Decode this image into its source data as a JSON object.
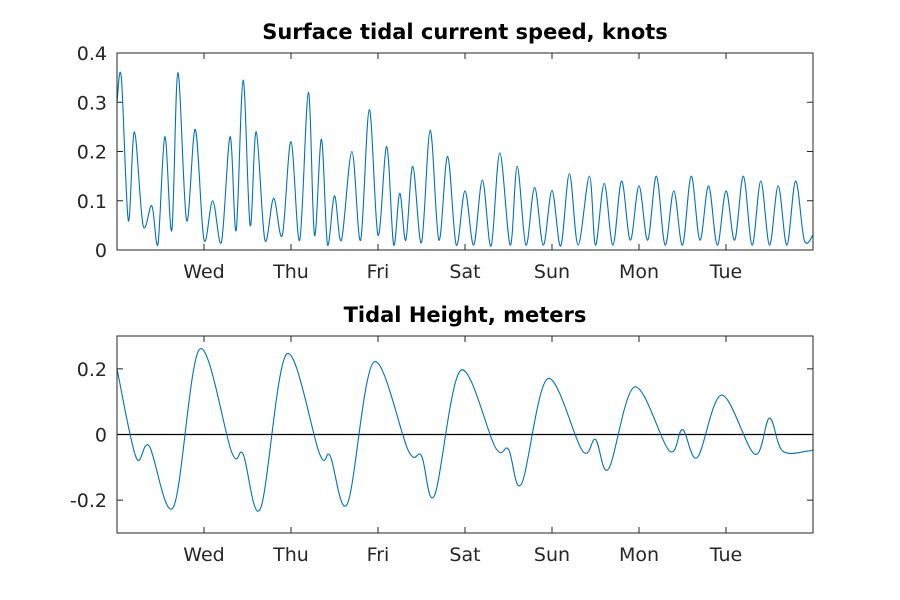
{
  "chart_data": [
    {
      "type": "line",
      "title": "Surface tidal current speed, knots",
      "xlabel": "",
      "ylabel": "",
      "xlim": [
        0,
        8
      ],
      "ylim": [
        0,
        0.4
      ],
      "x_ticks": [
        1,
        2,
        3,
        4,
        5,
        6,
        7
      ],
      "x_tick_labels": [
        "Wed",
        "Thu",
        "Fri",
        "Sat",
        "Sun",
        "Mon",
        "Tue"
      ],
      "y_ticks": [
        0,
        0.1,
        0.2,
        0.3,
        0.4
      ],
      "y_tick_labels": [
        "0",
        "0.1",
        "0.2",
        "0.3",
        "0.4"
      ],
      "grid": false,
      "series": [
        {
          "color": "#0072BD",
          "x": [
            0,
            0.05,
            0.13,
            0.2,
            0.3,
            0.4,
            0.47,
            0.55,
            0.63,
            0.7,
            0.8,
            0.9,
            1.0,
            1.1,
            1.2,
            1.3,
            1.37,
            1.45,
            1.53,
            1.6,
            1.7,
            1.8,
            1.9,
            2.0,
            2.1,
            2.2,
            2.27,
            2.35,
            2.42,
            2.5,
            2.58,
            2.7,
            2.8,
            2.9,
            3.0,
            3.1,
            3.18,
            3.25,
            3.32,
            3.4,
            3.5,
            3.6,
            3.7,
            3.8,
            3.9,
            4.0,
            4.1,
            4.2,
            4.3,
            4.4,
            4.52,
            4.6,
            4.7,
            4.8,
            4.9,
            5.0,
            5.1,
            5.2,
            5.3,
            5.43,
            5.5,
            5.6,
            5.7,
            5.8,
            5.9,
            6.0,
            6.1,
            6.2,
            6.3,
            6.4,
            6.5,
            6.6,
            6.7,
            6.8,
            6.9,
            7.0,
            7.1,
            7.2,
            7.3,
            7.4,
            7.5,
            7.6,
            7.7,
            7.8,
            7.9,
            8.0
          ],
          "y": [
            0.3,
            0.35,
            0.06,
            0.24,
            0.05,
            0.09,
            0.01,
            0.23,
            0.04,
            0.36,
            0.06,
            0.245,
            0.02,
            0.1,
            0.015,
            0.23,
            0.04,
            0.345,
            0.05,
            0.24,
            0.02,
            0.105,
            0.03,
            0.22,
            0.02,
            0.32,
            0.03,
            0.225,
            0.01,
            0.11,
            0.02,
            0.2,
            0.02,
            0.285,
            0.03,
            0.21,
            0.01,
            0.115,
            0.02,
            0.17,
            0.015,
            0.243,
            0.02,
            0.19,
            0.01,
            0.12,
            0.01,
            0.142,
            0.008,
            0.197,
            0.01,
            0.17,
            0.01,
            0.127,
            0.01,
            0.121,
            0.008,
            0.155,
            0.01,
            0.15,
            0.01,
            0.135,
            0.01,
            0.14,
            0.02,
            0.13,
            0.02,
            0.15,
            0.01,
            0.12,
            0.01,
            0.15,
            0.02,
            0.13,
            0.01,
            0.12,
            0.02,
            0.15,
            0.01,
            0.14,
            0.01,
            0.13,
            0.01,
            0.14,
            0.02,
            0.03
          ]
        }
      ]
    },
    {
      "type": "line",
      "title": "Tidal Height, meters",
      "xlabel": "",
      "ylabel": "",
      "xlim": [
        0,
        8
      ],
      "ylim": [
        -0.3,
        0.3
      ],
      "x_ticks": [
        1,
        2,
        3,
        4,
        5,
        6,
        7
      ],
      "x_tick_labels": [
        "Wed",
        "Thu",
        "Fri",
        "Sat",
        "Sun",
        "Mon",
        "Tue"
      ],
      "y_ticks": [
        -0.2,
        0,
        0.2
      ],
      "y_tick_labels": [
        "-0.2",
        "0",
        "0.2"
      ],
      "zero_line": true,
      "grid": false,
      "series": [
        {
          "color": "#0072BD",
          "x": [
            0,
            0.22,
            0.37,
            0.65,
            0.95,
            1.32,
            1.45,
            1.65,
            1.95,
            2.33,
            2.45,
            2.65,
            2.95,
            3.35,
            3.5,
            3.65,
            3.95,
            4.35,
            4.5,
            4.65,
            4.95,
            5.35,
            5.5,
            5.65,
            5.95,
            6.35,
            6.5,
            6.67,
            6.95,
            7.33,
            7.5,
            7.65,
            7.95,
            8.0
          ],
          "y": [
            0.2,
            -0.07,
            -0.035,
            -0.22,
            0.26,
            -0.055,
            -0.06,
            -0.225,
            0.245,
            -0.06,
            -0.065,
            -0.21,
            0.22,
            -0.05,
            -0.065,
            -0.185,
            0.195,
            -0.04,
            -0.045,
            -0.15,
            0.17,
            -0.05,
            -0.015,
            -0.105,
            0.145,
            -0.05,
            0.015,
            -0.07,
            0.12,
            -0.06,
            0.05,
            -0.05,
            -0.05,
            -0.045
          ]
        }
      ]
    }
  ]
}
